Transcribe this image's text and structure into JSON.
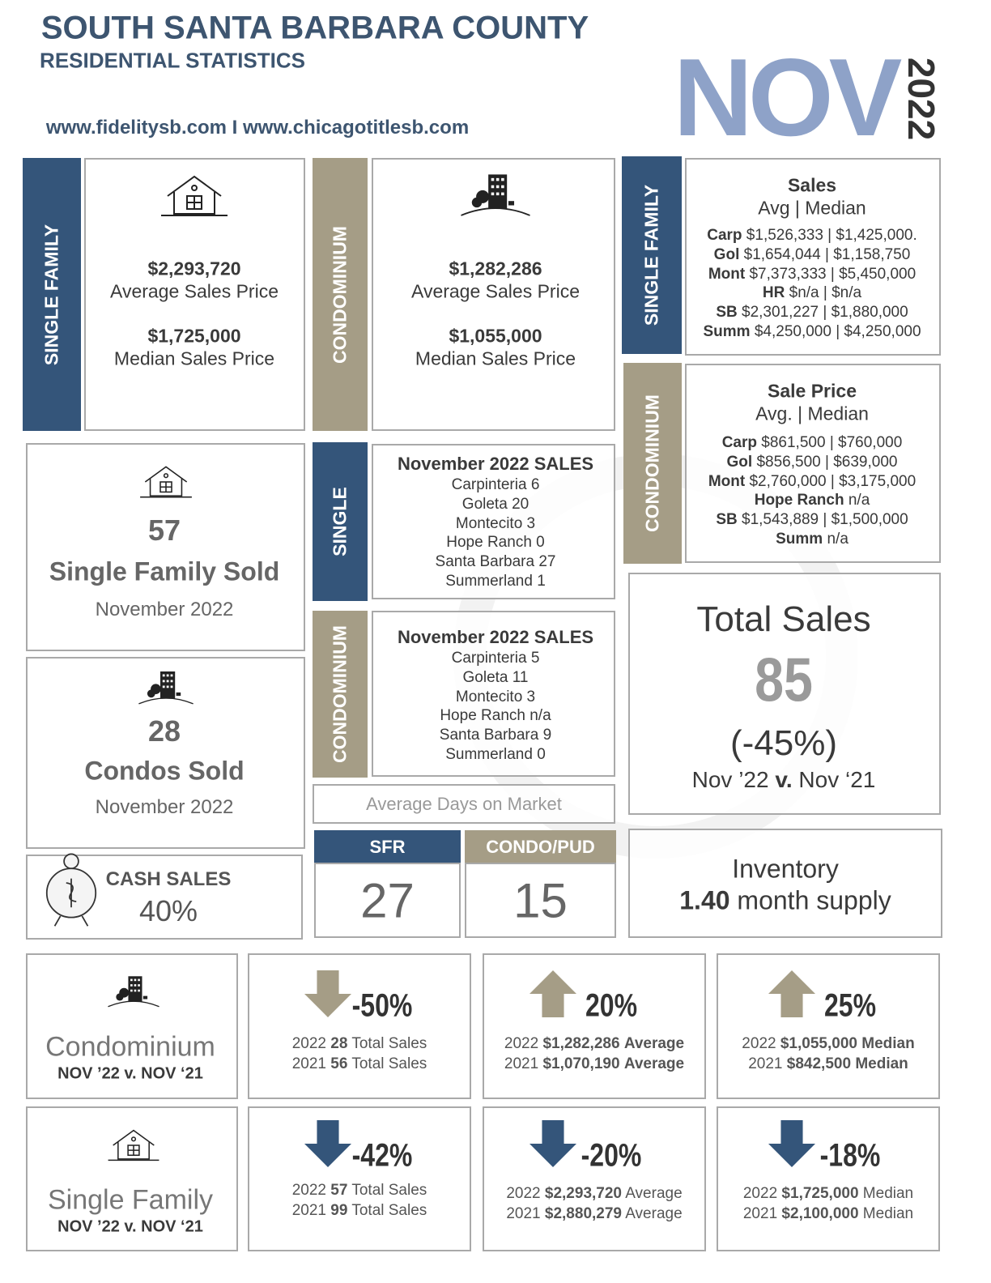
{
  "header": {
    "title": "SOUTH SANTA BARBARA COUNTY",
    "subtitle": "RESIDENTIAL STATISTICS",
    "websites": "www.fidelitysb.com I www.chicagotitlesb.com",
    "month": "NOV",
    "year": "2022"
  },
  "single_family_prices": {
    "label": "SINGLE FAMILY",
    "average": "$2,293,720",
    "average_label": "Average Sales Price",
    "median": "$1,725,000",
    "median_label": "Median Sales Price"
  },
  "condo_prices": {
    "label": "CONDOMINIUM",
    "average": "$1,282,286",
    "average_label": "Average Sales Price",
    "median": "$1,055,000",
    "median_label": "Median Sales Price"
  },
  "sf_by_area": {
    "label": "SINGLE FAMILY",
    "title": "Sales",
    "subtitle": "Avg | Median",
    "rows": [
      [
        "Carp",
        "$1,526,333 | $1,425,000."
      ],
      [
        "Gol",
        "$1,654,044 | $1,158,750"
      ],
      [
        "Mont",
        "$7,373,333 | $5,450,000"
      ],
      [
        "HR",
        "$n/a | $n/a"
      ],
      [
        "SB",
        "$2,301,227 | $1,880,000"
      ],
      [
        "Summ",
        "$4,250,000 | $4,250,000"
      ]
    ]
  },
  "condo_by_area": {
    "label": "CONDOMINIUM",
    "title": "Sale Price",
    "subtitle": "Avg. | Median",
    "rows": [
      [
        "Carp",
        "$861,500 | $760,000"
      ],
      [
        "Gol",
        "$856,500 | $639,000"
      ],
      [
        "Mont",
        "$2,760,000 | $3,175,000"
      ],
      [
        "Hope Ranch",
        "n/a"
      ],
      [
        "SB",
        "$1,543,889 | $1,500,000"
      ],
      [
        "Summ",
        "n/a"
      ]
    ]
  },
  "sf_sold": {
    "count": 57,
    "label": "Single Family Sold",
    "period": "November 2022"
  },
  "condos_sold": {
    "count": 28,
    "label": "Condos Sold",
    "period": "November 2022"
  },
  "sf_sales_by_area": {
    "label": "SINGLE",
    "title": "November 2022 SALES",
    "rows": [
      [
        "Carpinteria",
        6
      ],
      [
        "Goleta",
        20
      ],
      [
        "Montecito",
        3
      ],
      [
        "Hope Ranch",
        0
      ],
      [
        "Santa Barbara",
        27
      ],
      [
        "Summerland",
        1
      ]
    ]
  },
  "condo_sales_by_area": {
    "label": "CONDOMINIUM",
    "title": "November 2022 SALES",
    "rows": [
      [
        "Carpinteria",
        5
      ],
      [
        "Goleta",
        11
      ],
      [
        "Montecito",
        3
      ],
      [
        "Hope Ranch",
        "n/a"
      ],
      [
        "Santa Barbara",
        9
      ],
      [
        "Summerland",
        0
      ]
    ]
  },
  "total_sales": {
    "title": "Total Sales",
    "count": 85,
    "change": "(-45%)",
    "comparison": [
      "Nov ’22",
      "v.",
      "Nov ‘21"
    ]
  },
  "days_on_market": {
    "title": "Average Days on Market",
    "columns": [
      {
        "label": "SFR",
        "value": 27
      },
      {
        "label": "CONDO/PUD",
        "value": 15
      }
    ]
  },
  "inventory": {
    "title": "Inventory",
    "value": "1.40",
    "label": "month supply"
  },
  "cash_sales": {
    "label": "CASH SALES",
    "value": "40%"
  },
  "comparisons": [
    {
      "title": "Condominium",
      "subtitle": "NOV ’22 v. NOV ‘21",
      "color": "#a59d86",
      "cards": [
        {
          "direction": "down",
          "change": "-50%",
          "rows": [
            [
              "2022",
              "28",
              "Total Sales"
            ],
            [
              "2021",
              "56",
              "Total Sales"
            ]
          ]
        },
        {
          "direction": "up",
          "change": "20%",
          "rows": [
            [
              "2022",
              "$1,282,286",
              "Average"
            ],
            [
              "2021",
              "$1,070,190",
              "Average"
            ]
          ]
        },
        {
          "direction": "up",
          "change": "25%",
          "rows": [
            [
              "2022",
              "$1,055,000",
              "Median"
            ],
            [
              "2021",
              "$842,500",
              "Median"
            ]
          ]
        }
      ]
    },
    {
      "title": "Single Family",
      "subtitle": "NOV ’22 v. NOV ‘21",
      "color": "#34557a",
      "cards": [
        {
          "direction": "down",
          "change": "-42%",
          "rows": [
            [
              "2022",
              "57",
              "Total Sales"
            ],
            [
              "2021",
              "99",
              "Total Sales"
            ]
          ]
        },
        {
          "direction": "down",
          "change": "-20%",
          "rows": [
            [
              "2022",
              "$2,293,720",
              "Average"
            ],
            [
              "2021",
              "$2,880,279",
              "Average"
            ]
          ]
        },
        {
          "direction": "down",
          "change": "-18%",
          "rows": [
            [
              "2022",
              "$1,725,000",
              "Median"
            ],
            [
              "2021",
              "$2,100,000",
              "Median"
            ]
          ]
        }
      ]
    }
  ]
}
